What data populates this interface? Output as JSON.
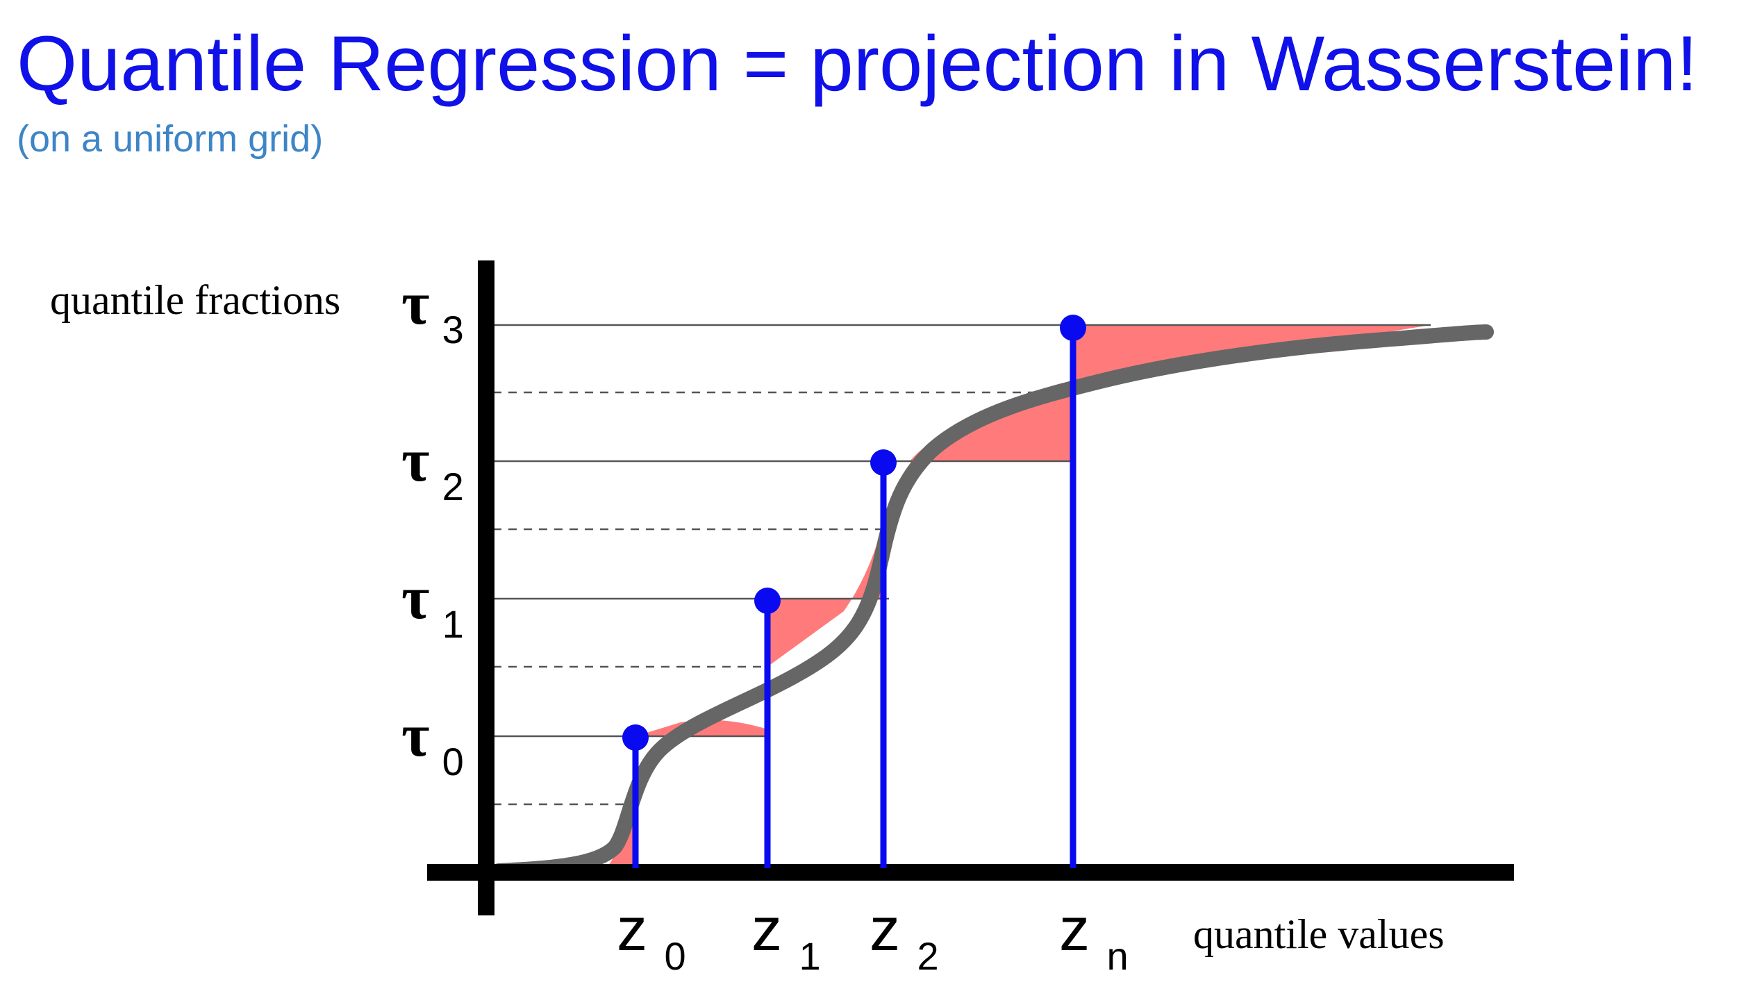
{
  "title": "Quantile Regression = projection in Wasserstein!",
  "subtitle": "(on a uniform grid)",
  "diagram": {
    "y_axis_label": "quantile fractions",
    "x_axis_label": "quantile values",
    "tau_labels": [
      {
        "base": "τ",
        "sub": "0"
      },
      {
        "base": "τ",
        "sub": "1"
      },
      {
        "base": "τ",
        "sub": "2"
      },
      {
        "base": "τ",
        "sub": "3"
      }
    ],
    "z_labels": [
      {
        "base": "z",
        "sub": "0"
      },
      {
        "base": "z",
        "sub": "1"
      },
      {
        "base": "z",
        "sub": "2"
      },
      {
        "base": "z",
        "sub": "n"
      }
    ],
    "colors": {
      "stem": "#0a0af0",
      "curve": "#666666",
      "error_fill": "#ff7b7b",
      "axis": "#000000",
      "grid": "#555555"
    }
  }
}
